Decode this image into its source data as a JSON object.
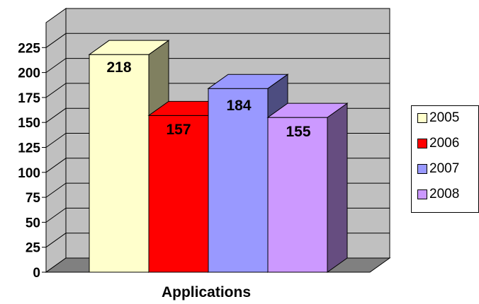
{
  "chart_data": {
    "type": "bar",
    "style": "3d-clustered",
    "categories": [
      "Applications"
    ],
    "xlabel": "Applications",
    "ylabel": "",
    "ylim": [
      0,
      250
    ],
    "yticks": [
      0,
      25,
      50,
      75,
      100,
      125,
      150,
      175,
      200,
      225
    ],
    "grid": true,
    "legend_position": "right",
    "series": [
      {
        "name": "2005",
        "values": [
          218
        ],
        "color": "#ffffcc",
        "side_color": "#808060"
      },
      {
        "name": "2006",
        "values": [
          157
        ],
        "color": "#ff0000",
        "side_color": "#800000"
      },
      {
        "name": "2007",
        "values": [
          184
        ],
        "color": "#9999ff",
        "side_color": "#4d4d80"
      },
      {
        "name": "2008",
        "values": [
          155
        ],
        "color": "#cc99ff",
        "side_color": "#664d80"
      }
    ]
  },
  "colors": {
    "wall": "#c0c0c0",
    "floor": "#808080",
    "grid": "#000000"
  }
}
